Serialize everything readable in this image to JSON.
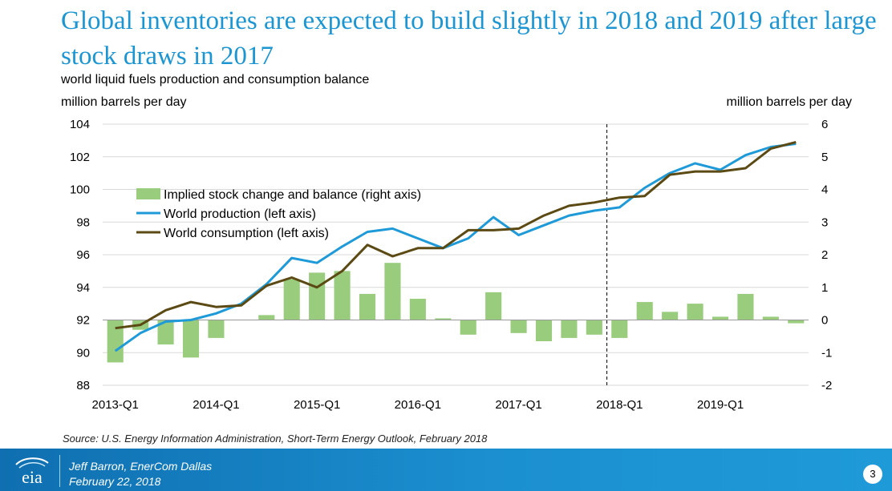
{
  "slide": {
    "title": "Global inventories are expected to build slightly in 2018 and 2019 after large stock draws in 2017",
    "subtitle": "world liquid fuels production and consumption balance",
    "left_unit": "million barrels per day",
    "right_unit": "million barrels per day",
    "source": "Source: U.S. Energy Information Administration, Short-Term Energy Outlook, February 2018",
    "presenter": "Jeff Barron, EnerCom Dallas",
    "date": "February 22, 2018",
    "page_number": "3",
    "logo_text": "eia"
  },
  "chart_data": {
    "type": "bar+line",
    "categories": [
      "2013-Q1",
      "2013-Q2",
      "2013-Q3",
      "2013-Q4",
      "2014-Q1",
      "2014-Q2",
      "2014-Q3",
      "2014-Q4",
      "2015-Q1",
      "2015-Q2",
      "2015-Q3",
      "2015-Q4",
      "2016-Q1",
      "2016-Q2",
      "2016-Q3",
      "2016-Q4",
      "2017-Q1",
      "2017-Q2",
      "2017-Q3",
      "2017-Q4",
      "2018-Q1",
      "2018-Q2",
      "2018-Q3",
      "2018-Q4",
      "2019-Q1",
      "2019-Q2",
      "2019-Q3",
      "2019-Q4"
    ],
    "x_tick_labels": [
      "2013-Q1",
      "2014-Q1",
      "2015-Q1",
      "2016-Q1",
      "2017-Q1",
      "2018-Q1",
      "2019-Q1"
    ],
    "forecast_start": "2018-Q1",
    "left_axis": {
      "ylim": [
        88,
        104
      ],
      "ticks": [
        88,
        90,
        92,
        94,
        96,
        98,
        100,
        102,
        104
      ]
    },
    "right_axis": {
      "ylim": [
        -2,
        6
      ],
      "ticks": [
        -2,
        -1,
        0,
        1,
        2,
        3,
        4,
        5,
        6
      ]
    },
    "legend_position": "upper-left",
    "grid": true,
    "colors": {
      "bars": "#99cc7d",
      "production": "#1f9ad8",
      "consumption": "#5c4a14",
      "grid": "#d9d9d9"
    },
    "series": [
      {
        "name": "Implied stock change and balance (right axis)",
        "kind": "bar",
        "axis": "right",
        "values": [
          -1.3,
          -0.3,
          -0.75,
          -1.15,
          -0.55,
          0.0,
          0.15,
          1.25,
          1.45,
          1.5,
          0.8,
          1.75,
          0.65,
          0.05,
          -0.45,
          0.85,
          -0.4,
          -0.65,
          -0.55,
          -0.45,
          -0.55,
          0.55,
          0.25,
          0.5,
          0.1,
          0.8,
          0.1,
          -0.1
        ]
      },
      {
        "name": "World production (left axis)",
        "kind": "line",
        "axis": "left",
        "values": [
          90.1,
          91.2,
          91.9,
          92.0,
          92.4,
          93.0,
          94.2,
          95.8,
          95.5,
          96.5,
          97.4,
          97.6,
          97.0,
          96.4,
          97.0,
          98.3,
          97.2,
          97.8,
          98.4,
          98.7,
          98.9,
          100.1,
          101.0,
          101.6,
          101.2,
          102.1,
          102.6,
          102.8
        ]
      },
      {
        "name": "World consumption (left axis)",
        "kind": "line",
        "axis": "left",
        "values": [
          91.5,
          91.7,
          92.6,
          93.1,
          92.8,
          92.9,
          94.1,
          94.6,
          94.0,
          95.0,
          96.6,
          95.9,
          96.4,
          96.4,
          97.5,
          97.5,
          97.6,
          98.4,
          99.0,
          99.2,
          99.5,
          99.6,
          100.9,
          101.1,
          101.1,
          101.3,
          102.5,
          102.9
        ]
      }
    ]
  }
}
